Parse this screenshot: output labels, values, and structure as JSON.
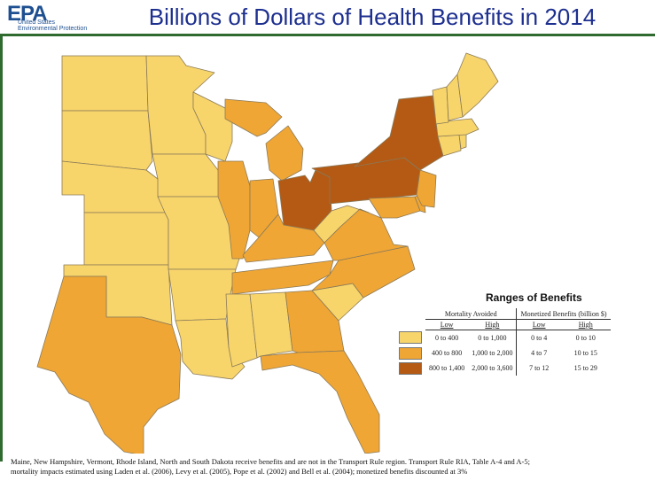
{
  "logo": {
    "text": "EPA",
    "line1": "United States",
    "line2": "Environmental Protection"
  },
  "title": "Billions of Dollars of Health Benefits in 2014",
  "colors": {
    "low": "#f8d56a",
    "mid": "#f0a634",
    "high": "#b45a14",
    "border": "#8a7a5a"
  },
  "legend": {
    "title": "Ranges of Benefits",
    "mortality_header": "Mortality Avoided",
    "monetized_header": "Monetized Benefits (billion $)",
    "col_low": "Low",
    "col_high": "High",
    "rows": [
      {
        "tier": "low",
        "mort_low": "0 to 400",
        "mort_high": "0 to 1,000",
        "mon_low": "0 to 4",
        "mon_high": "0 to 10"
      },
      {
        "tier": "mid",
        "mort_low": "400 to 800",
        "mort_high": "1,000 to 2,000",
        "mon_low": "4 to 7",
        "mon_high": "10 to 15"
      },
      {
        "tier": "high",
        "mort_low": "800 to 1,400",
        "mort_high": "2,000 to 3,600",
        "mon_low": "7 to 12",
        "mon_high": "15 to 29"
      }
    ]
  },
  "states": [
    {
      "name": "ND",
      "tier": "low"
    },
    {
      "name": "SD",
      "tier": "low"
    },
    {
      "name": "NE",
      "tier": "low"
    },
    {
      "name": "KS",
      "tier": "low"
    },
    {
      "name": "OK",
      "tier": "low"
    },
    {
      "name": "TX",
      "tier": "mid"
    },
    {
      "name": "MN",
      "tier": "low"
    },
    {
      "name": "IA",
      "tier": "low"
    },
    {
      "name": "MO",
      "tier": "low"
    },
    {
      "name": "AR",
      "tier": "low"
    },
    {
      "name": "LA",
      "tier": "low"
    },
    {
      "name": "WI",
      "tier": "low"
    },
    {
      "name": "IL",
      "tier": "mid"
    },
    {
      "name": "MI",
      "tier": "mid"
    },
    {
      "name": "IN",
      "tier": "mid"
    },
    {
      "name": "OH",
      "tier": "high"
    },
    {
      "name": "KY",
      "tier": "mid"
    },
    {
      "name": "TN",
      "tier": "mid"
    },
    {
      "name": "MS",
      "tier": "low"
    },
    {
      "name": "AL",
      "tier": "low"
    },
    {
      "name": "GA",
      "tier": "mid"
    },
    {
      "name": "FL",
      "tier": "mid"
    },
    {
      "name": "SC",
      "tier": "low"
    },
    {
      "name": "NC",
      "tier": "mid"
    },
    {
      "name": "VA",
      "tier": "mid"
    },
    {
      "name": "WV",
      "tier": "low"
    },
    {
      "name": "PA",
      "tier": "high"
    },
    {
      "name": "NY",
      "tier": "high"
    },
    {
      "name": "MD",
      "tier": "mid"
    },
    {
      "name": "DE",
      "tier": "mid"
    },
    {
      "name": "NJ",
      "tier": "mid"
    },
    {
      "name": "CT",
      "tier": "low"
    },
    {
      "name": "RI",
      "tier": "low"
    },
    {
      "name": "MA",
      "tier": "low"
    },
    {
      "name": "VT",
      "tier": "low"
    },
    {
      "name": "NH",
      "tier": "low"
    },
    {
      "name": "ME",
      "tier": "low"
    }
  ],
  "footnote": {
    "line1": "Maine, New Hampshire, Vermont, Rhode Island, North and South Dakota receive benefits and are not in the Transport Rule region.  Transport Rule RIA, Table A-4 and A-5;",
    "line2": "mortality impacts estimated using Laden et al. (2006), Levy et al. (2005), Pope et al. (2002)  and Bell et al. (2004); monetized benefits discounted at 3%"
  }
}
